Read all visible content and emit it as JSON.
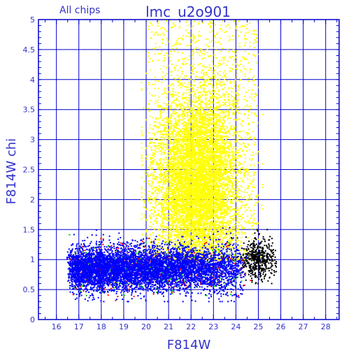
{
  "header": {
    "subtitle": "All chips",
    "title": "lmc_u2o901"
  },
  "chart_data": {
    "type": "scatter",
    "title": "lmc_u2o901",
    "subtitle": "All chips",
    "xlabel": "F814W",
    "ylabel": "F814W chi",
    "xlim": [
      15.2,
      28.6
    ],
    "ylim": [
      0,
      5
    ],
    "xticks": [
      16,
      17,
      18,
      19,
      20,
      21,
      22,
      23,
      24,
      25,
      26,
      27,
      28
    ],
    "yticks": [
      0,
      0.5,
      1,
      1.5,
      2,
      2.5,
      3,
      3.5,
      4,
      4.5,
      5
    ],
    "xtick_labels": [
      "16",
      "17",
      "18",
      "19",
      "20",
      "21",
      "22",
      "23",
      "24",
      "25",
      "26",
      "27",
      "28"
    ],
    "ytick_labels": [
      "0",
      "0.5",
      "1",
      "1.5",
      "2",
      "2.5",
      "3",
      "3.5",
      "4",
      "4.5",
      "5"
    ],
    "grid": true,
    "colors": {
      "frame": "#0000cc",
      "grid": "#0000cc",
      "labels": "#3333cc",
      "yellow": "#ffff00",
      "blue": "#0000ff",
      "green": "#00cc00",
      "red": "#ff0000",
      "black": "#000000"
    },
    "clusters": [
      {
        "color": "yellow",
        "x_range": [
          19.8,
          25.2
        ],
        "x_center": 22.3,
        "y_range": [
          1.0,
          5.0
        ],
        "y_center": 2.3,
        "approx_count": 9000
      },
      {
        "color": "blue",
        "x_range": [
          16.0,
          24.6
        ],
        "x_center": 22.0,
        "y_range": [
          0.3,
          1.6
        ],
        "y_center": 0.9,
        "approx_count": 6000
      },
      {
        "color": "green",
        "x_range": [
          16.0,
          24.5
        ],
        "x_center": 20.5,
        "y_range": [
          0.4,
          1.6
        ],
        "y_center": 0.85,
        "approx_count": 600
      },
      {
        "color": "red",
        "x_range": [
          16.0,
          24.8
        ],
        "x_center": 21.5,
        "y_range": [
          0.3,
          1.6
        ],
        "y_center": 0.85,
        "approx_count": 500
      },
      {
        "color": "black",
        "x_range": [
          23.8,
          25.8
        ],
        "x_center": 25.0,
        "y_range": [
          0.6,
          1.5
        ],
        "y_center": 1.0,
        "approx_count": 500
      }
    ]
  }
}
